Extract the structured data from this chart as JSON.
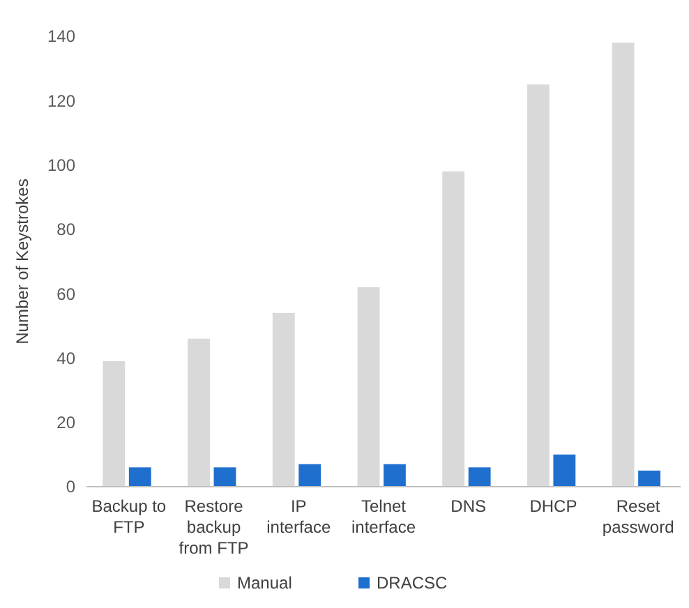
{
  "chart_data": {
    "type": "bar",
    "ylabel": "Number of Keystrokes",
    "categories": [
      "Backup to FTP",
      "Restore backup from FTP",
      "IP interface",
      "Telnet interface",
      "DNS",
      "DHCP",
      "Reset password"
    ],
    "series": [
      {
        "name": "Manual",
        "color": "#d9d9d9",
        "values": [
          39,
          46,
          54,
          62,
          98,
          125,
          138
        ]
      },
      {
        "name": "DRACSC",
        "color": "#1f6fcf",
        "values": [
          6,
          6,
          7,
          7,
          6,
          10,
          5
        ]
      }
    ],
    "ylim": [
      0,
      140
    ],
    "yticks": [
      0,
      20,
      40,
      60,
      80,
      100,
      120,
      140
    ],
    "legend": "bottom"
  }
}
